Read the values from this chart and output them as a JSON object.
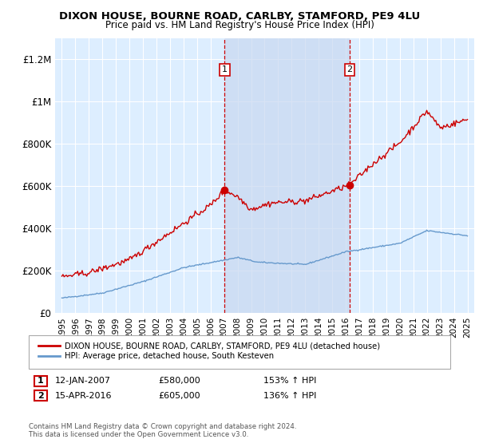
{
  "title": "DIXON HOUSE, BOURNE ROAD, CARLBY, STAMFORD, PE9 4LU",
  "subtitle": "Price paid vs. HM Land Registry's House Price Index (HPI)",
  "ylabel_ticks": [
    "£0",
    "£200K",
    "£400K",
    "£600K",
    "£800K",
    "£1M",
    "£1.2M"
  ],
  "ytick_values": [
    0,
    200000,
    400000,
    600000,
    800000,
    1000000,
    1200000
  ],
  "ylim": [
    0,
    1300000
  ],
  "xlim_start": 1994.5,
  "xlim_end": 2025.5,
  "transaction1": {
    "date": 2007.04,
    "price": 580000,
    "label": "1",
    "text": "12-JAN-2007",
    "amount": "£580,000",
    "hpi": "153% ↑ HPI"
  },
  "transaction2": {
    "date": 2016.29,
    "price": 605000,
    "label": "2",
    "text": "15-APR-2016",
    "amount": "£605,000",
    "hpi": "136% ↑ HPI"
  },
  "legend_line1": "DIXON HOUSE, BOURNE ROAD, CARLBY, STAMFORD, PE9 4LU (detached house)",
  "legend_line2": "HPI: Average price, detached house, South Kesteven",
  "footer1": "Contains HM Land Registry data © Crown copyright and database right 2024.",
  "footer2": "This data is licensed under the Open Government Licence v3.0.",
  "red_color": "#cc0000",
  "blue_color": "#6699cc",
  "bg_color": "#ddeeff",
  "shade_color": "#c8d8f0",
  "grid_color": "#ffffff"
}
